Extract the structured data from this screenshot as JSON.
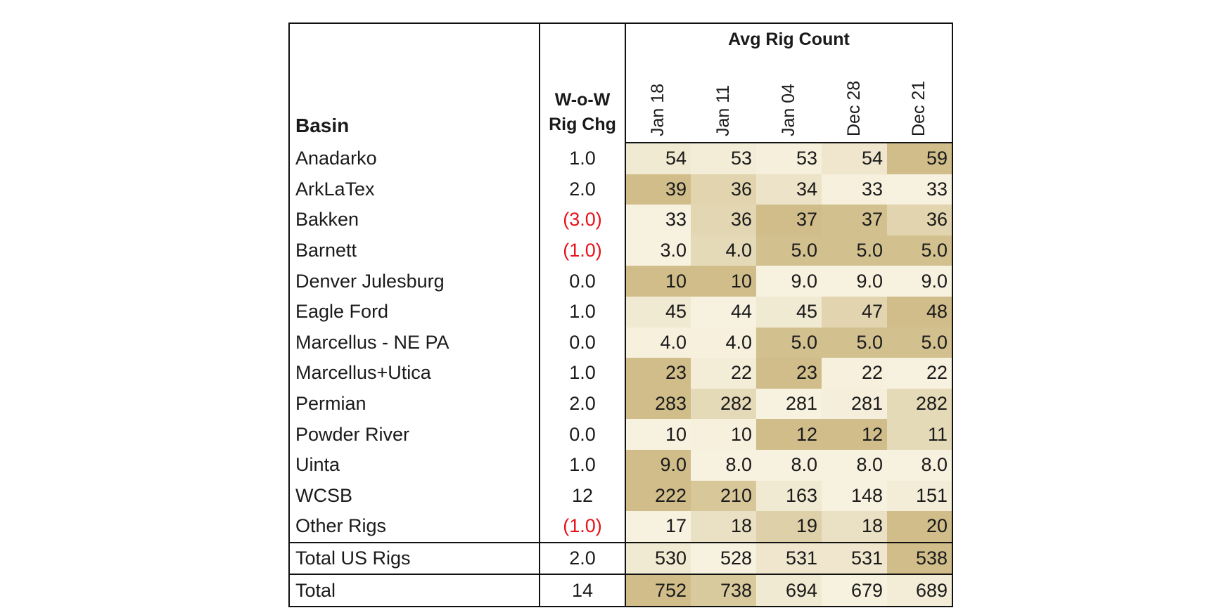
{
  "chart_data": {
    "type": "table",
    "headers": {
      "basin": "Basin",
      "change_line1": "W-o-W",
      "change_line2": "Rig Chg",
      "group": "Avg Rig Count"
    },
    "columns": [
      "Jan 18",
      "Jan 11",
      "Jan 04",
      "Dec 28",
      "Dec 21"
    ],
    "rows": [
      {
        "basin": "Anadarko",
        "change": "1.0",
        "negative": false,
        "values": [
          "54",
          "53",
          "53",
          "54",
          "59"
        ],
        "shade": [
          0.15,
          0.1,
          0.07,
          0.2,
          0.85
        ]
      },
      {
        "basin": "ArkLaTex",
        "change": "2.0",
        "negative": false,
        "values": [
          "39",
          "36",
          "34",
          "33",
          "33"
        ],
        "shade": [
          0.85,
          0.5,
          0.25,
          0.05,
          0.03
        ]
      },
      {
        "basin": "Bakken",
        "change": "(3.0)",
        "negative": true,
        "values": [
          "33",
          "36",
          "37",
          "37",
          "36"
        ],
        "shade": [
          0.03,
          0.45,
          0.85,
          0.8,
          0.5
        ]
      },
      {
        "basin": "Barnett",
        "change": "(1.0)",
        "negative": true,
        "values": [
          "3.0",
          "4.0",
          "5.0",
          "5.0",
          "5.0"
        ],
        "shade": [
          0.03,
          0.4,
          0.8,
          0.8,
          0.8
        ]
      },
      {
        "basin": "Denver Julesburg",
        "change": "0.0",
        "negative": false,
        "values": [
          "10",
          "10",
          "9.0",
          "9.0",
          "9.0"
        ],
        "shade": [
          0.85,
          0.85,
          0.03,
          0.03,
          0.03
        ]
      },
      {
        "basin": "Eagle Ford",
        "change": "1.0",
        "negative": false,
        "values": [
          "45",
          "44",
          "45",
          "47",
          "48"
        ],
        "shade": [
          0.15,
          0.03,
          0.15,
          0.5,
          0.85
        ]
      },
      {
        "basin": "Marcellus - NE PA",
        "change": "0.0",
        "negative": false,
        "values": [
          "4.0",
          "4.0",
          "5.0",
          "5.0",
          "5.0"
        ],
        "shade": [
          0.05,
          0.05,
          0.8,
          0.8,
          0.8
        ]
      },
      {
        "basin": "Marcellus+Utica",
        "change": "1.0",
        "negative": false,
        "values": [
          "23",
          "22",
          "23",
          "22",
          "22"
        ],
        "shade": [
          0.85,
          0.1,
          0.85,
          0.05,
          0.03
        ]
      },
      {
        "basin": "Permian",
        "change": "2.0",
        "negative": false,
        "values": [
          "283",
          "282",
          "281",
          "281",
          "282"
        ],
        "shade": [
          0.85,
          0.4,
          0.03,
          0.08,
          0.4
        ]
      },
      {
        "basin": "Powder River",
        "change": "0.0",
        "negative": false,
        "values": [
          "10",
          "10",
          "12",
          "12",
          "11"
        ],
        "shade": [
          0.03,
          0.05,
          0.85,
          0.85,
          0.4
        ]
      },
      {
        "basin": "Uinta",
        "change": "1.0",
        "negative": false,
        "values": [
          "9.0",
          "8.0",
          "8.0",
          "8.0",
          "8.0"
        ],
        "shade": [
          0.85,
          0.03,
          0.03,
          0.03,
          0.03
        ]
      },
      {
        "basin": "WCSB",
        "change": "12",
        "negative": false,
        "values": [
          "222",
          "210",
          "163",
          "148",
          "151"
        ],
        "shade": [
          0.85,
          0.7,
          0.15,
          0.03,
          0.1
        ]
      },
      {
        "basin": "Other Rigs",
        "change": "(1.0)",
        "negative": true,
        "values": [
          "17",
          "18",
          "19",
          "18",
          "20"
        ],
        "shade": [
          0.03,
          0.3,
          0.55,
          0.3,
          0.85
        ]
      },
      {
        "basin": "Total US Rigs",
        "change": "2.0",
        "negative": false,
        "values": [
          "530",
          "528",
          "531",
          "531",
          "538"
        ],
        "shade": [
          0.15,
          0.03,
          0.2,
          0.2,
          0.85
        ],
        "separator": true
      },
      {
        "basin": "Total",
        "change": "14",
        "negative": false,
        "values": [
          "752",
          "738",
          "694",
          "679",
          "689"
        ],
        "shade": [
          0.85,
          0.65,
          0.15,
          0.03,
          0.1
        ],
        "separator": true
      }
    ]
  },
  "colors": {
    "shade_low": "#f8f3e2",
    "shade_high": "#c9b47a",
    "negative_text": "#e8121b",
    "border": "#111111"
  }
}
